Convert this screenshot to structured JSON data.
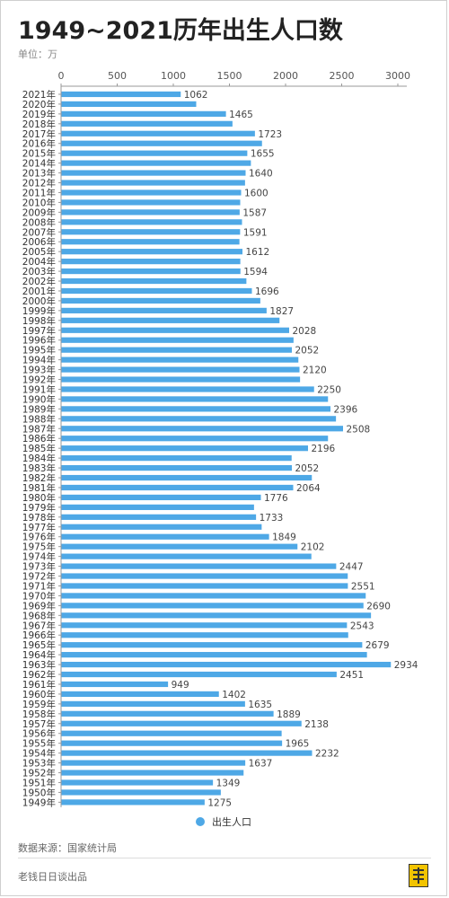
{
  "header": {
    "title": "1949~2021历年出生人口数",
    "unit": "单位：万"
  },
  "legend": {
    "label": "出生人口"
  },
  "footer": {
    "source": "数据来源：国家统计局",
    "producer": "老钱日日谈出品"
  },
  "colors": {
    "bar": "#4ea8e6",
    "axis": "#999999",
    "label": "#444444"
  },
  "chart_data": {
    "type": "bar",
    "orientation": "horizontal",
    "title": "1949~2021历年出生人口数",
    "xlabel": "",
    "ylabel": "",
    "xlim": [
      0,
      3000
    ],
    "xticks": [
      0,
      500,
      1000,
      1500,
      2000,
      2500,
      3000
    ],
    "grid": false,
    "legend_position": "bottom",
    "categories": [
      "2021年",
      "2020年",
      "2019年",
      "2018年",
      "2017年",
      "2016年",
      "2015年",
      "2014年",
      "2013年",
      "2012年",
      "2011年",
      "2010年",
      "2009年",
      "2008年",
      "2007年",
      "2006年",
      "2005年",
      "2004年",
      "2003年",
      "2002年",
      "2001年",
      "2000年",
      "1999年",
      "1998年",
      "1997年",
      "1996年",
      "1995年",
      "1994年",
      "1993年",
      "1992年",
      "1991年",
      "1990年",
      "1989年",
      "1988年",
      "1987年",
      "1986年",
      "1985年",
      "1984年",
      "1983年",
      "1982年",
      "1981年",
      "1980年",
      "1979年",
      "1978年",
      "1977年",
      "1976年",
      "1975年",
      "1974年",
      "1973年",
      "1972年",
      "1971年",
      "1970年",
      "1969年",
      "1968年",
      "1967年",
      "1966年",
      "1965年",
      "1964年",
      "1963年",
      "1962年",
      "1961年",
      "1960年",
      "1959年",
      "1958年",
      "1957年",
      "1956年",
      "1955年",
      "1954年",
      "1953年",
      "1952年",
      "1951年",
      "1950年",
      "1949年"
    ],
    "series": [
      {
        "name": "出生人口",
        "values": [
          1062,
          1200,
          1465,
          1523,
          1723,
          1786,
          1655,
          1687,
          1640,
          1635,
          1600,
          1592,
          1587,
          1608,
          1591,
          1585,
          1612,
          1593,
          1594,
          1647,
          1696,
          1771,
          1827,
          1942,
          2028,
          2067,
          2052,
          2110,
          2120,
          2125,
          2250,
          2374,
          2396,
          2445,
          2508,
          2374,
          2196,
          2050,
          2052,
          2230,
          2064,
          1776,
          1715,
          1733,
          1783,
          1849,
          2102,
          2226,
          2447,
          2550,
          2551,
          2710,
          2690,
          2757,
          2543,
          2554,
          2679,
          2721,
          2934,
          2451,
          949,
          1402,
          1635,
          1889,
          2138,
          1961,
          1965,
          2232,
          1637,
          1622,
          1349,
          1419,
          1275
        ]
      }
    ],
    "value_labels": [
      {
        "category": "2021年",
        "label": "1062"
      },
      {
        "category": "2019年",
        "label": "1465"
      },
      {
        "category": "2017年",
        "label": "1723"
      },
      {
        "category": "2015年",
        "label": "1655"
      },
      {
        "category": "2013年",
        "label": "1640"
      },
      {
        "category": "2011年",
        "label": "1600"
      },
      {
        "category": "2009年",
        "label": "1587"
      },
      {
        "category": "2007年",
        "label": "1591"
      },
      {
        "category": "2005年",
        "label": "1612"
      },
      {
        "category": "2003年",
        "label": "1594"
      },
      {
        "category": "2001年",
        "label": "1696"
      },
      {
        "category": "1999年",
        "label": "1827"
      },
      {
        "category": "1997年",
        "label": "2028"
      },
      {
        "category": "1995年",
        "label": "2052"
      },
      {
        "category": "1993年",
        "label": "2120"
      },
      {
        "category": "1991年",
        "label": "2250"
      },
      {
        "category": "1989年",
        "label": "2396"
      },
      {
        "category": "1987年",
        "label": "2508"
      },
      {
        "category": "1985年",
        "label": "2196"
      },
      {
        "category": "1983年",
        "label": "2052"
      },
      {
        "category": "1981年",
        "label": "2064"
      },
      {
        "category": "1980年",
        "label": "1776"
      },
      {
        "category": "1978年",
        "label": "1733"
      },
      {
        "category": "1976年",
        "label": "1849"
      },
      {
        "category": "1975年",
        "label": "2102"
      },
      {
        "category": "1973年",
        "label": "2447"
      },
      {
        "category": "1971年",
        "label": "2551"
      },
      {
        "category": "1969年",
        "label": "2690"
      },
      {
        "category": "1967年",
        "label": "2543"
      },
      {
        "category": "1965年",
        "label": "2679"
      },
      {
        "category": "1963年",
        "label": "2934"
      },
      {
        "category": "1962年",
        "label": "2451"
      },
      {
        "category": "1961年",
        "label": "949"
      },
      {
        "category": "1960年",
        "label": "1402"
      },
      {
        "category": "1959年",
        "label": "1635"
      },
      {
        "category": "1958年",
        "label": "1889"
      },
      {
        "category": "1957年",
        "label": "2138"
      },
      {
        "category": "1955年",
        "label": "1965"
      },
      {
        "category": "1954年",
        "label": "2232"
      },
      {
        "category": "1953年",
        "label": "1637"
      },
      {
        "category": "1951年",
        "label": "1349"
      },
      {
        "category": "1949年",
        "label": "1275"
      }
    ]
  }
}
